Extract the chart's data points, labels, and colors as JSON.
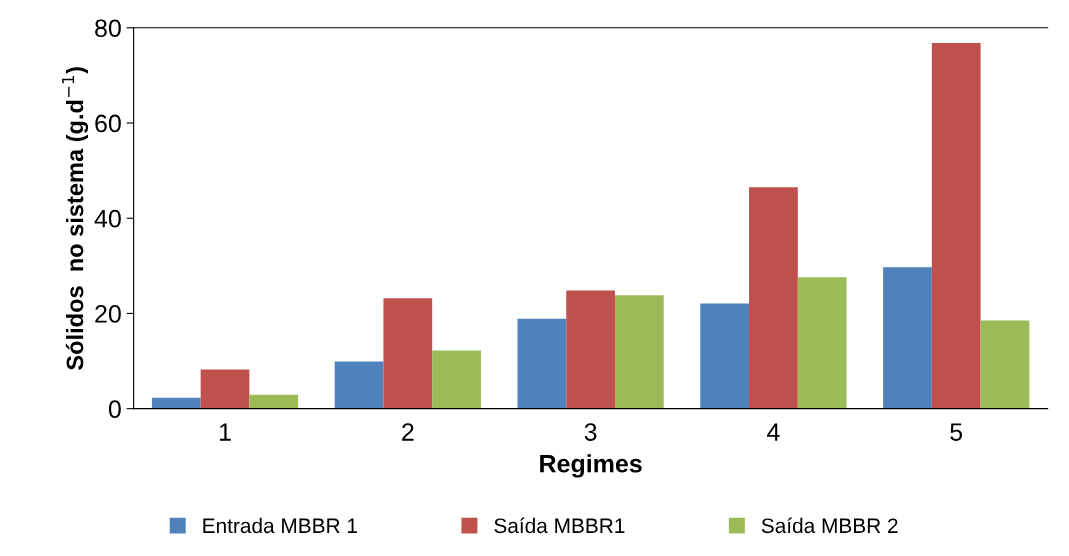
{
  "chart_data": {
    "type": "bar",
    "xlabel": "Regimes",
    "ylabel": "Sólidos  no sistema (g.d$^{−1}$)",
    "categories": [
      "1",
      "2",
      "3",
      "4",
      "5"
    ],
    "series": [
      {
        "name": "Entrada MBBR 1",
        "color": "#4f81bd",
        "values": [
          2.3,
          9.9,
          18.9,
          22.1,
          29.7
        ]
      },
      {
        "name": "Saída MBBR1",
        "color": "#c0504d",
        "values": [
          8.2,
          23.2,
          24.8,
          46.5,
          76.8
        ]
      },
      {
        "name": "Saída MBBR 2",
        "color": "#9bbb59",
        "values": [
          2.9,
          12.2,
          23.8,
          27.6,
          18.5
        ]
      }
    ],
    "ylim": [
      0,
      80
    ],
    "yticks": [
      0,
      20,
      40,
      60,
      80
    ],
    "grid": false,
    "legend": "bottom"
  }
}
